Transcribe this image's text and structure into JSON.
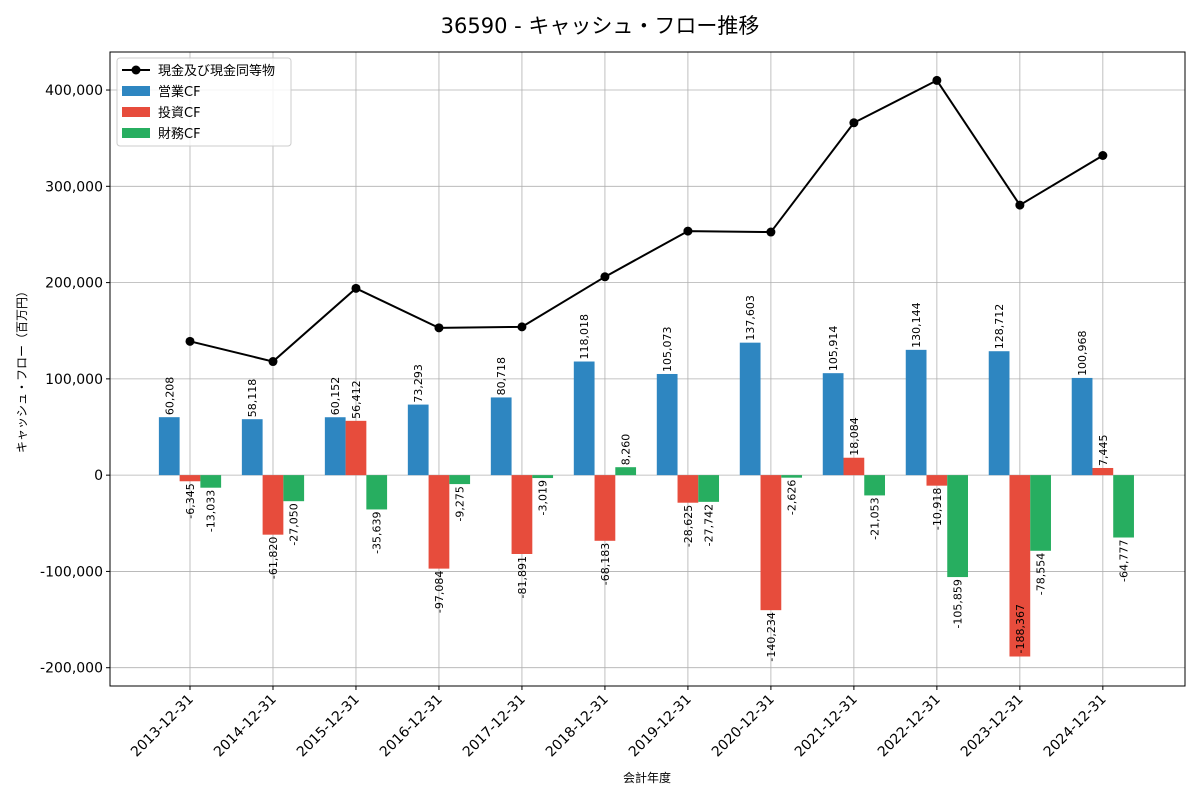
{
  "chart_data": {
    "type": "bar",
    "title": "36590 - キャッシュ・フロー推移",
    "xlabel": "会計年度",
    "ylabel": "キャッシュ・フロー（百万円）",
    "ylim": [
      -219000,
      439500
    ],
    "yticks": [
      -200000,
      -100000,
      0,
      100000,
      200000,
      300000,
      400000
    ],
    "ytick_labels": [
      "-200,000",
      "-100,000",
      "0",
      "100,000",
      "200,000",
      "300,000",
      "400,000"
    ],
    "grid": true,
    "legend_position": "top-left",
    "categories": [
      "2013-12-31",
      "2014-12-31",
      "2015-12-31",
      "2016-12-31",
      "2017-12-31",
      "2018-12-31",
      "2019-12-31",
      "2020-12-31",
      "2021-12-31",
      "2022-12-31",
      "2023-12-31",
      "2024-12-31"
    ],
    "line_series": {
      "name": "現金及び現金同等物",
      "color": "#000000",
      "values": [
        139000,
        118000,
        194000,
        153000,
        154000,
        206000,
        253500,
        252500,
        366000,
        410000,
        280500,
        332000
      ]
    },
    "series": [
      {
        "name": "営業CF",
        "color": "#2e86c1",
        "values": [
          60208,
          58118,
          60152,
          73293,
          80718,
          118018,
          105073,
          137603,
          105914,
          130144,
          128712,
          100968
        ]
      },
      {
        "name": "投資CF",
        "color": "#e74c3c",
        "values": [
          -6345,
          -61820,
          56412,
          -97084,
          -81891,
          -68183,
          -28625,
          -140234,
          18084,
          -10918,
          -188367,
          7445
        ]
      },
      {
        "name": "財務CF",
        "color": "#27ae60",
        "values": [
          -13033,
          -27050,
          -35639,
          -9275,
          -3019,
          8260,
          -27742,
          -2626,
          -21053,
          -105859,
          -78554,
          -64777
        ]
      }
    ]
  }
}
